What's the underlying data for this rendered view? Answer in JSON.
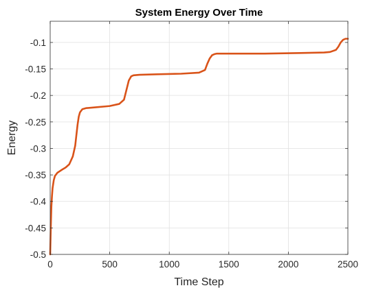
{
  "chart_data": {
    "type": "line",
    "title": "System Energy Over Time",
    "xlabel": "Time Step",
    "ylabel": "Energy",
    "xlim": [
      0,
      2500
    ],
    "ylim": [
      -0.5,
      -0.06
    ],
    "xticks": [
      0,
      500,
      1000,
      1500,
      2000,
      2500
    ],
    "yticks": [
      -0.5,
      -0.45,
      -0.4,
      -0.35,
      -0.3,
      -0.25,
      -0.2,
      -0.15,
      -0.1
    ],
    "xtick_labels": [
      "0",
      "500",
      "1000",
      "1500",
      "2000",
      "2500"
    ],
    "ytick_labels": [
      "-0.5",
      "-0.45",
      "-0.4",
      "-0.35",
      "-0.3",
      "-0.25",
      "-0.2",
      "-0.15",
      "-0.1"
    ],
    "grid": true,
    "legend": false,
    "series": [
      {
        "color": "#d95319",
        "x": [
          0,
          5,
          10,
          15,
          20,
          30,
          40,
          60,
          80,
          100,
          130,
          160,
          190,
          210,
          220,
          230,
          240,
          250,
          270,
          300,
          400,
          500,
          580,
          620,
          640,
          660,
          680,
          700,
          750,
          900,
          1100,
          1250,
          1300,
          1320,
          1340,
          1360,
          1380,
          1400,
          1500,
          1800,
          2100,
          2300,
          2350,
          2400,
          2420,
          2440,
          2460,
          2480,
          2500
        ],
        "y": [
          -0.5,
          -0.45,
          -0.41,
          -0.39,
          -0.375,
          -0.36,
          -0.352,
          -0.346,
          -0.343,
          -0.34,
          -0.336,
          -0.33,
          -0.315,
          -0.295,
          -0.275,
          -0.255,
          -0.24,
          -0.232,
          -0.226,
          -0.224,
          -0.222,
          -0.22,
          -0.216,
          -0.208,
          -0.19,
          -0.172,
          -0.164,
          -0.162,
          -0.161,
          -0.16,
          -0.159,
          -0.157,
          -0.152,
          -0.14,
          -0.13,
          -0.124,
          -0.122,
          -0.121,
          -0.121,
          -0.121,
          -0.12,
          -0.119,
          -0.118,
          -0.114,
          -0.108,
          -0.1,
          -0.095,
          -0.093,
          -0.093
        ]
      }
    ]
  }
}
